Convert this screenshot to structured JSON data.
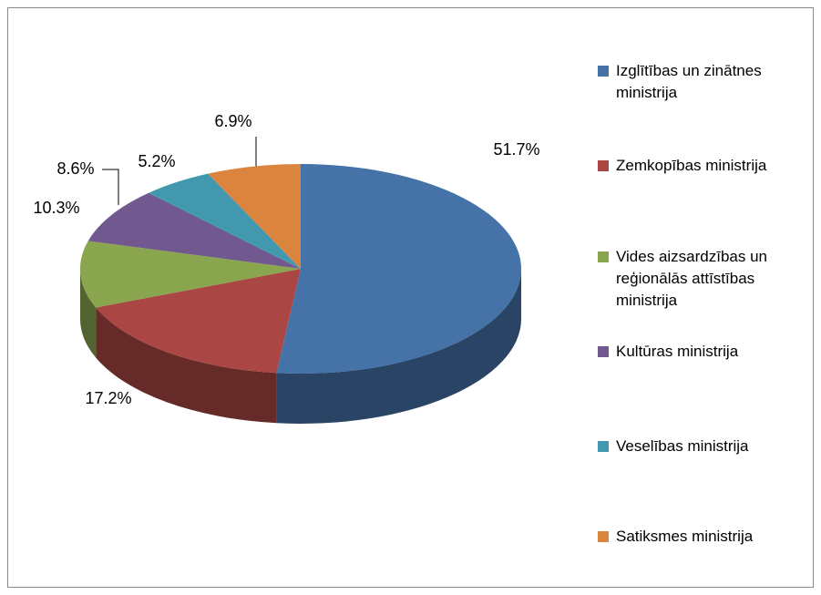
{
  "chart_data": {
    "type": "pie",
    "categories": [
      "Izglītības un zinātnes ministrija",
      "Zemkopības ministrija",
      "Vides aizsardzības un reģionālās attīstības ministrija",
      "Kultūras ministrija",
      "Veselības ministrija",
      "Satiksmes ministrija"
    ],
    "values": [
      51.7,
      17.2,
      10.3,
      8.6,
      5.2,
      6.9
    ],
    "value_labels": [
      "51.7%",
      "17.2%",
      "10.3%",
      "8.6%",
      "5.2%",
      "6.9%"
    ],
    "colors": [
      "#4572a7",
      "#aa4643",
      "#89a54e",
      "#71588f",
      "#4198af",
      "#db843d"
    ],
    "legend": "right"
  }
}
